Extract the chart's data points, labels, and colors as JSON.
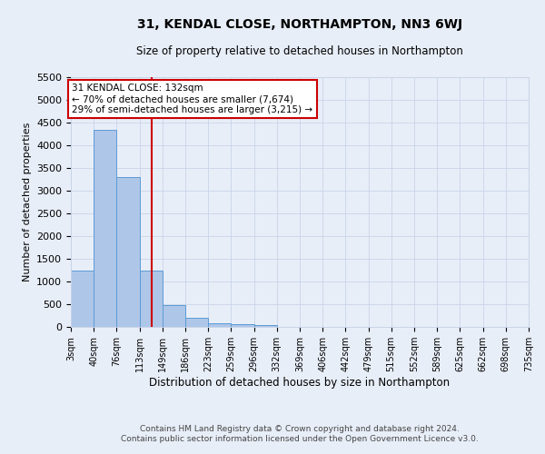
{
  "title": "31, KENDAL CLOSE, NORTHAMPTON, NN3 6WJ",
  "subtitle": "Size of property relative to detached houses in Northampton",
  "xlabel": "Distribution of detached houses by size in Northampton",
  "ylabel": "Number of detached properties",
  "footer_line1": "Contains HM Land Registry data © Crown copyright and database right 2024.",
  "footer_line2": "Contains public sector information licensed under the Open Government Licence v3.0.",
  "annotation_title": "31 KENDAL CLOSE: 132sqm",
  "annotation_line1": "← 70% of detached houses are smaller (7,674)",
  "annotation_line2": "29% of semi-detached houses are larger (3,215) →",
  "bin_edges": [
    3,
    40,
    76,
    113,
    149,
    186,
    223,
    259,
    296,
    332,
    369,
    406,
    442,
    479,
    515,
    552,
    589,
    625,
    662,
    698,
    735
  ],
  "bar_heights": [
    1250,
    4350,
    3300,
    1250,
    475,
    200,
    90,
    60,
    50,
    0,
    0,
    0,
    0,
    0,
    0,
    0,
    0,
    0,
    0,
    0
  ],
  "bar_color": "#aec6e8",
  "bar_edge_color": "#5b9bd5",
  "vline_color": "#cc0000",
  "vline_x": 132,
  "annotation_box_edge": "#cc0000",
  "annotation_box_face": "white",
  "grid_color": "#c8d4e8",
  "background_color": "#e8eef8",
  "ylim": [
    0,
    5500
  ],
  "yticks": [
    0,
    500,
    1000,
    1500,
    2000,
    2500,
    3000,
    3500,
    4000,
    4500,
    5000,
    5500
  ]
}
